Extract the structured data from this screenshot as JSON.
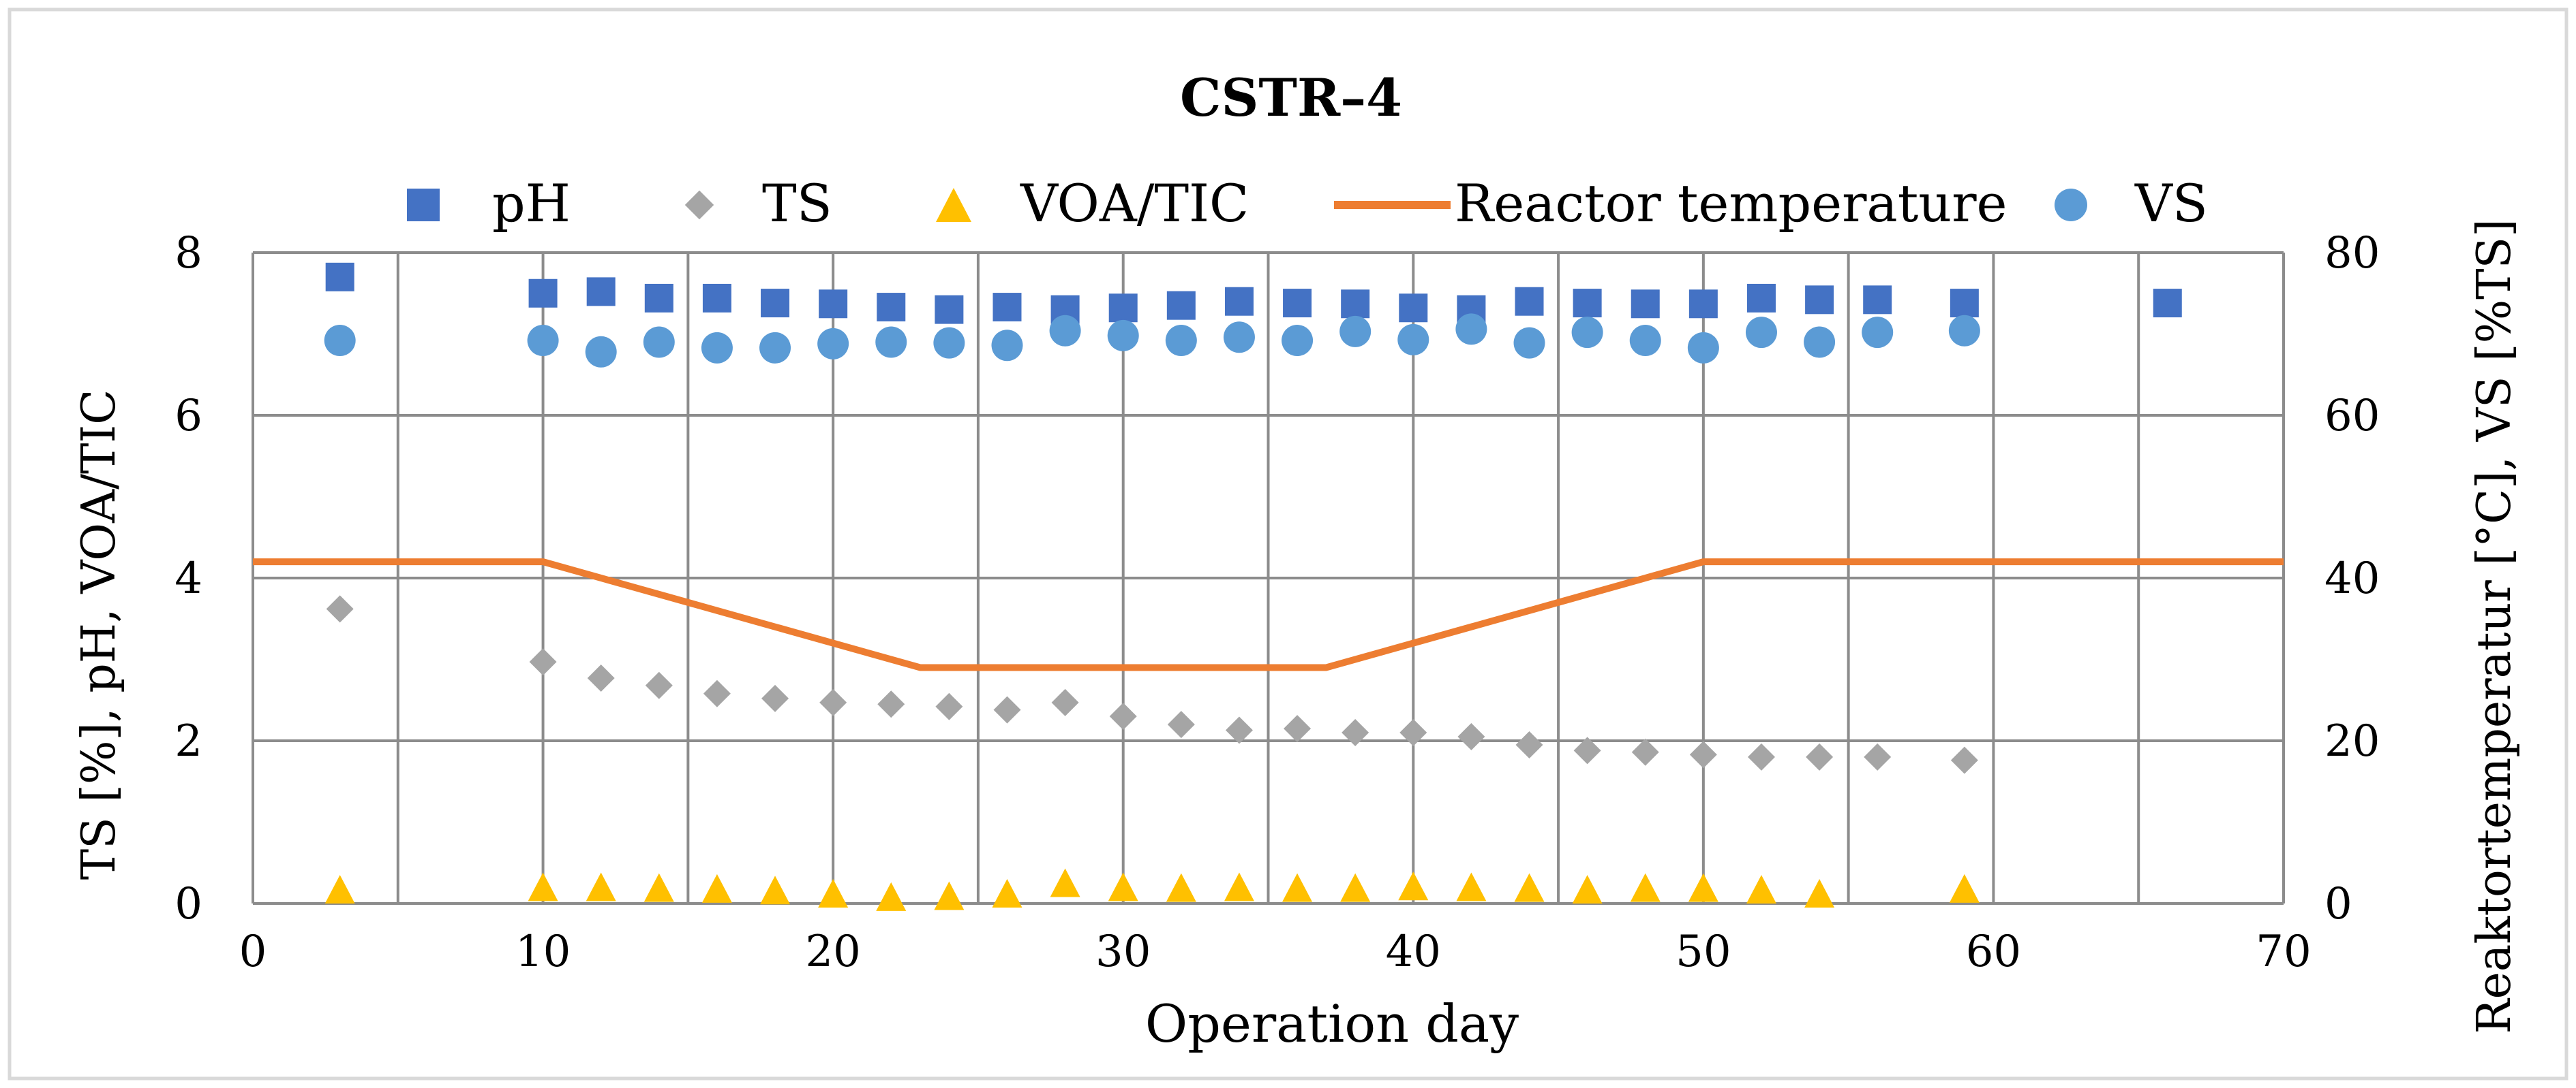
{
  "chart_data": {
    "type": "scatter",
    "title": "CSTR–4",
    "xlabel": "Operation day",
    "ylabel_left": "TS [%], pH,  VOA/TIC",
    "ylabel_right": "Reaktortemperatur [°C], VS [%TS]",
    "xlim": [
      0,
      70
    ],
    "ylim_left": [
      0,
      8
    ],
    "ylim_right": [
      0,
      80
    ],
    "x_ticks": [
      "0",
      "10",
      "20",
      "30",
      "40",
      "50",
      "60",
      "70"
    ],
    "y_ticks_left": [
      "0",
      "2",
      "4",
      "6",
      "8"
    ],
    "y_ticks_right": [
      "0",
      "20",
      "40",
      "60",
      "80"
    ],
    "grid": true,
    "legend_position": "top",
    "colors": {
      "pH": "#4472c4",
      "TS": "#a5a5a5",
      "VOA_TIC": "#ffc000",
      "temperature": "#ed7d31",
      "VS": "#5b9bd5",
      "grid": "#8c8c8c",
      "frame": "#d9d9d9"
    },
    "series": [
      {
        "name": "pH",
        "marker": "square",
        "axis": "left",
        "x": [
          3,
          10,
          12,
          14,
          16,
          18,
          20,
          22,
          24,
          26,
          28,
          30,
          32,
          34,
          36,
          38,
          40,
          42,
          44,
          46,
          48,
          50,
          52,
          54,
          56,
          59,
          66
        ],
        "values": [
          7.7,
          7.5,
          7.52,
          7.44,
          7.44,
          7.38,
          7.37,
          7.33,
          7.3,
          7.33,
          7.3,
          7.32,
          7.35,
          7.4,
          7.38,
          7.37,
          7.32,
          7.3,
          7.4,
          7.38,
          7.37,
          7.37,
          7.44,
          7.42,
          7.42,
          7.38,
          7.38
        ]
      },
      {
        "name": "TS",
        "marker": "diamond",
        "axis": "left",
        "x": [
          3,
          10,
          12,
          14,
          16,
          18,
          20,
          22,
          24,
          26,
          28,
          30,
          32,
          34,
          36,
          38,
          40,
          42,
          44,
          46,
          48,
          50,
          52,
          54,
          56,
          59
        ],
        "values": [
          3.62,
          2.97,
          2.77,
          2.68,
          2.58,
          2.52,
          2.47,
          2.45,
          2.42,
          2.38,
          2.47,
          2.3,
          2.2,
          2.13,
          2.15,
          2.1,
          2.1,
          2.05,
          1.95,
          1.88,
          1.86,
          1.83,
          1.8,
          1.8,
          1.8,
          1.76
        ]
      },
      {
        "name": "VOA/TIC",
        "marker": "triangle",
        "axis": "left",
        "x": [
          3,
          10,
          12,
          14,
          16,
          18,
          20,
          22,
          24,
          26,
          28,
          30,
          32,
          34,
          36,
          38,
          40,
          42,
          44,
          46,
          48,
          50,
          52,
          54,
          59
        ],
        "values": [
          0.15,
          0.18,
          0.18,
          0.17,
          0.16,
          0.14,
          0.1,
          0.06,
          0.07,
          0.1,
          0.23,
          0.18,
          0.17,
          0.18,
          0.17,
          0.17,
          0.19,
          0.18,
          0.17,
          0.15,
          0.17,
          0.17,
          0.15,
          0.1,
          0.16
        ]
      },
      {
        "name": "Reactor temperature",
        "marker": "line",
        "axis": "right",
        "x": [
          0,
          10,
          23,
          37,
          50,
          70
        ],
        "values": [
          42,
          42,
          29,
          29,
          42,
          42
        ]
      },
      {
        "name": "VS",
        "marker": "circle",
        "axis": "right",
        "x": [
          3,
          10,
          12,
          14,
          16,
          18,
          20,
          22,
          24,
          26,
          28,
          30,
          32,
          34,
          36,
          38,
          40,
          42,
          44,
          46,
          48,
          50,
          52,
          54,
          56,
          59
        ],
        "values": [
          69.2,
          69.2,
          67.8,
          69,
          68.3,
          68.3,
          68.8,
          69,
          68.9,
          68.6,
          70.4,
          69.8,
          69.2,
          69.6,
          69.2,
          70.3,
          69.3,
          70.6,
          68.9,
          70.2,
          69.2,
          68.3,
          70.2,
          69,
          70.2,
          70.4
        ]
      }
    ]
  }
}
